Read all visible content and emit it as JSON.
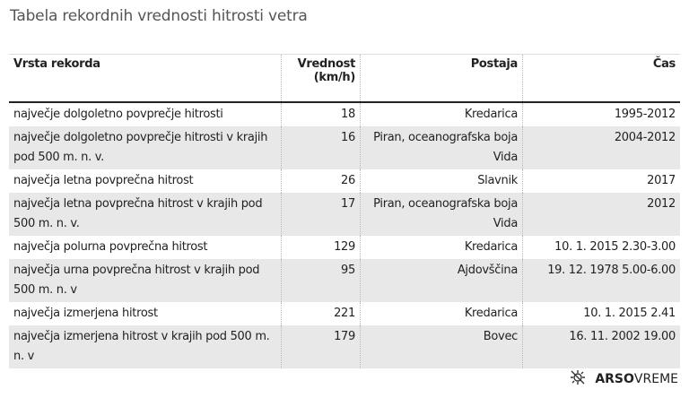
{
  "title": "Tabela rekordnih vrednosti hitrosti vetra",
  "headers": [
    "Vrsta rekorda",
    "Vrednost (km/h)",
    "Postaja",
    "Čas"
  ],
  "rows": [
    [
      "največje dolgoletno povprečje hitrosti",
      "18",
      "Kredarica",
      "1995-2012"
    ],
    [
      "največje dolgoletno povprečje hitrosti v krajih pod 500 m. n. v.",
      "16",
      "Piran, oceanografska boja Vida",
      "2004-2012"
    ],
    [
      "največja letna povprečna hitrost",
      "26",
      "Slavnik",
      "2017"
    ],
    [
      "največja letna povprečna hitrost v krajih pod 500 m. n. v.",
      "17",
      "Piran, oceanografska boja Vida",
      "2012"
    ],
    [
      "največja polurna povprečna hitrost",
      "129",
      "Kredarica",
      "10. 1. 2015 2.30-3.00"
    ],
    [
      "največja urna povprečna hitrost v krajih pod 500 m. n. v",
      "95",
      "Ajdovščina",
      "19. 12. 1978 5.00-6.00"
    ],
    [
      "največja izmerjena hitrost",
      "221",
      "Kredarica",
      "10. 1. 2015 2.41"
    ],
    [
      "največja izmerjena hitrost v krajih pod 500 m. n. v",
      "179",
      "Bovec",
      "16. 11. 2002 19.00"
    ]
  ],
  "brand": {
    "bold": "ARSO",
    "light": "VREME",
    "icon": "sun-off-icon"
  }
}
